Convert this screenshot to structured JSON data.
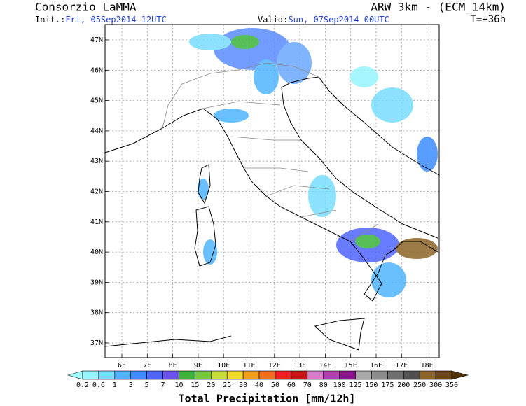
{
  "header": {
    "title": "Consorzio LaMMA",
    "init_label": "Init.:",
    "init_value": "Fri, 05Sep2014 12UTC",
    "valid_label": "Valid:",
    "valid_value": "Sun, 07Sep2014 00UTC",
    "model": "ARW 3km - (ECM_14km)",
    "lead": "T=+36h"
  },
  "map": {
    "lat_labels": [
      "47N",
      "46N",
      "45N",
      "44N",
      "43N",
      "42N",
      "41N",
      "40N",
      "39N",
      "38N",
      "37N"
    ],
    "lon_labels": [
      "6E",
      "7E",
      "8E",
      "9E",
      "10E",
      "11E",
      "12E",
      "13E",
      "14E",
      "15E",
      "16E",
      "17E",
      "18E"
    ]
  },
  "colorbar": {
    "labels": [
      "0.2",
      "0.6",
      "1",
      "3",
      "5",
      "7",
      "10",
      "15",
      "20",
      "25",
      "30",
      "40",
      "50",
      "60",
      "70",
      "80",
      "100",
      "125",
      "150",
      "175",
      "200",
      "250",
      "300",
      "350"
    ],
    "colors": [
      "#a0fffe",
      "#96f5ff",
      "#78dcff",
      "#50b4ff",
      "#3c8cff",
      "#5064ff",
      "#6e50f0",
      "#3cb43c",
      "#78c83c",
      "#c8dc3c",
      "#f0dc28",
      "#f0a01e",
      "#f06e1e",
      "#f01e1e",
      "#c81414",
      "#dc78c8",
      "#b43cb4",
      "#8c148c",
      "#aaaaaa",
      "#8c8c8c",
      "#6e6e6e",
      "#505050",
      "#8c6428",
      "#6e4614",
      "#503200"
    ],
    "title": "Total Precipitation [mm/12h]"
  }
}
